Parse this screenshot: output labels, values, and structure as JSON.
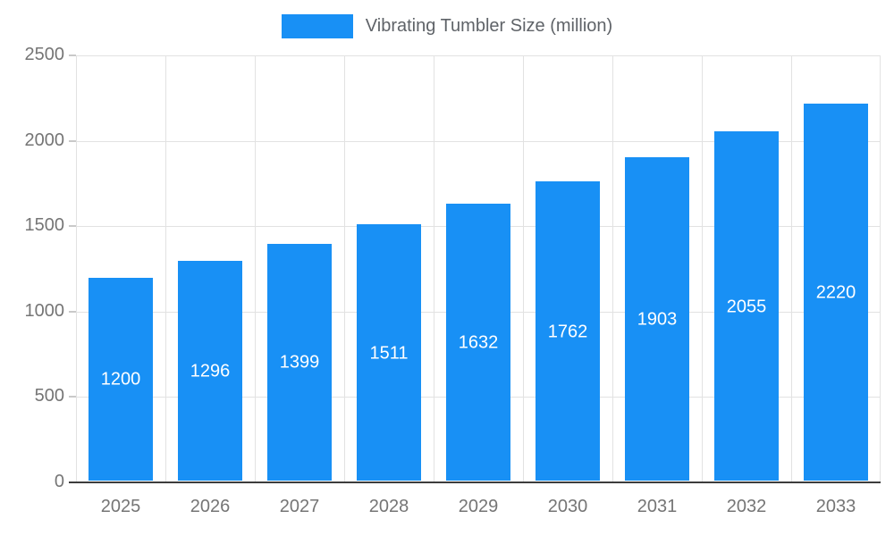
{
  "chart_data": {
    "type": "bar",
    "title": "Vibrating Tumbler Size (million)",
    "categories": [
      "2025",
      "2026",
      "2027",
      "2028",
      "2029",
      "2030",
      "2031",
      "2032",
      "2033"
    ],
    "series": [
      {
        "name": "Vibrating Tumbler Size (million)",
        "values": [
          1200,
          1296,
          1399,
          1511,
          1632,
          1762,
          1903,
          2055,
          2220
        ]
      }
    ],
    "ylim": [
      0,
      2500
    ],
    "ytick_step": 500,
    "ytick_labels": [
      "0",
      "500",
      "1000",
      "1500",
      "2000",
      "2500"
    ],
    "xlabel": "",
    "ylabel": "",
    "grid": "on",
    "legend_position": "top",
    "bar_color": "#1890f5",
    "value_label_color": "#ffffff",
    "axis_label_color": "#757575",
    "gridline_color": "#e2e2e2"
  }
}
